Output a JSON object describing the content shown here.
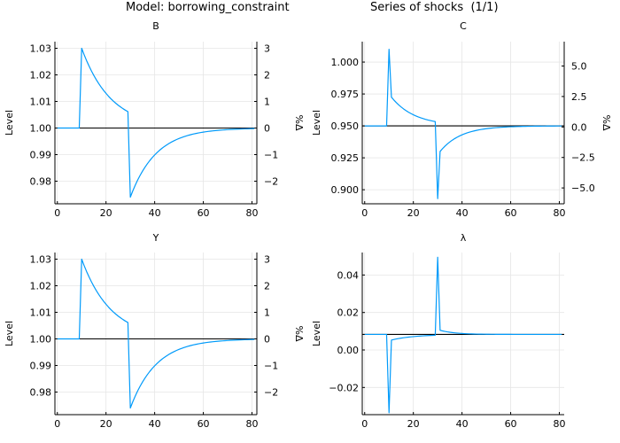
{
  "header": {
    "model_label": "Model: borrowing_constraint",
    "series_label": "Series of shocks  (1/1)"
  },
  "colors": {
    "series": "#009AFA",
    "reference": "#000000",
    "grid": "#e6e6e6",
    "axis": "#000000"
  },
  "chart_data": [
    {
      "type": "line",
      "id": "B",
      "title": "B",
      "xlabel": "",
      "ylabel": "Level",
      "ylabel_right": "%Δ",
      "xlim": [
        -1,
        82
      ],
      "ylim": [
        0.9715,
        1.0325
      ],
      "ylim_right": [
        -2.85,
        3.25
      ],
      "xticks": [
        0,
        20,
        40,
        60,
        80
      ],
      "yticks": [
        0.98,
        0.99,
        1.0,
        1.01,
        1.02,
        1.03
      ],
      "ytick_labels": [
        "0.98",
        "0.99",
        "1.00",
        "1.01",
        "1.02",
        "1.03"
      ],
      "yticks_right": [
        -2,
        -1,
        0,
        1,
        2,
        3
      ],
      "ytick_labels_right": [
        "−2",
        "−1",
        "0",
        "1",
        "2",
        "3"
      ],
      "reference_level": 1.0,
      "grid": true,
      "shape": "jump",
      "series": [
        {
          "name": "B",
          "params": {
            "ss": 1.0,
            "start": 9,
            "shock1": 10,
            "peak1": 1.03,
            "rho1": 0.92,
            "shock2": 30,
            "peak2": 0.974,
            "rho2": 0.91
          }
        }
      ]
    },
    {
      "type": "line",
      "id": "C",
      "title": "C",
      "xlabel": "",
      "ylabel": "Level",
      "ylabel_right": "%Δ",
      "xlim": [
        -1,
        82
      ],
      "ylim": [
        0.889,
        1.016
      ],
      "ylim_right": [
        -6.3,
        7.0
      ],
      "xticks": [
        0,
        20,
        40,
        60,
        80
      ],
      "yticks": [
        0.9,
        0.925,
        0.95,
        0.975,
        1.0
      ],
      "ytick_labels": [
        "0.900",
        "0.925",
        "0.950",
        "0.975",
        "1.000"
      ],
      "yticks_right": [
        -5.0,
        -2.5,
        0.0,
        2.5,
        5.0
      ],
      "ytick_labels_right": [
        "−5.0",
        "−2.5",
        "0.0",
        "2.5",
        "5.0"
      ],
      "reference_level": 0.95,
      "grid": true,
      "shape": "spike",
      "series": [
        {
          "name": "C",
          "params": {
            "ss": 0.95,
            "start": 9,
            "shock1": 10,
            "peak1": 1.01,
            "after1": 0.9725,
            "rho1": 0.9,
            "shock2": 30,
            "peak2": 0.893,
            "after2": 0.93,
            "rho2": 0.89
          }
        }
      ]
    },
    {
      "type": "line",
      "id": "Y",
      "title": "Y",
      "xlabel": "",
      "ylabel": "Level",
      "ylabel_right": "%Δ",
      "xlim": [
        -1,
        82
      ],
      "ylim": [
        0.9715,
        1.0325
      ],
      "ylim_right": [
        -2.85,
        3.25
      ],
      "xticks": [
        0,
        20,
        40,
        60,
        80
      ],
      "yticks": [
        0.98,
        0.99,
        1.0,
        1.01,
        1.02,
        1.03
      ],
      "ytick_labels": [
        "0.98",
        "0.99",
        "1.00",
        "1.01",
        "1.02",
        "1.03"
      ],
      "yticks_right": [
        -2,
        -1,
        0,
        1,
        2,
        3
      ],
      "ytick_labels_right": [
        "−2",
        "−1",
        "0",
        "1",
        "2",
        "3"
      ],
      "reference_level": 1.0,
      "grid": true,
      "shape": "jump",
      "series": [
        {
          "name": "Y",
          "params": {
            "ss": 1.0,
            "start": 9,
            "shock1": 10,
            "peak1": 1.03,
            "rho1": 0.92,
            "shock2": 30,
            "peak2": 0.974,
            "rho2": 0.91
          }
        }
      ]
    },
    {
      "type": "line",
      "id": "lambda",
      "title": "λ",
      "xlabel": "",
      "ylabel": "Level",
      "ylabel_right": "",
      "xlim": [
        -1,
        82
      ],
      "ylim": [
        -0.0345,
        0.052
      ],
      "xticks": [
        0,
        20,
        40,
        60,
        80
      ],
      "yticks": [
        -0.02,
        0.0,
        0.02,
        0.04
      ],
      "ytick_labels": [
        "−0.02",
        "0.00",
        "0.02",
        "0.04"
      ],
      "reference_level": 0.0083,
      "grid": true,
      "shape": "spike",
      "series": [
        {
          "name": "λ",
          "params": {
            "ss": 0.0083,
            "start": 9,
            "shock1": 10,
            "peak1": -0.0335,
            "after1": 0.0053,
            "rho1": 0.9,
            "shock2": 30,
            "peak2": 0.0495,
            "after2": 0.0105,
            "rho2": 0.85
          }
        }
      ]
    }
  ]
}
